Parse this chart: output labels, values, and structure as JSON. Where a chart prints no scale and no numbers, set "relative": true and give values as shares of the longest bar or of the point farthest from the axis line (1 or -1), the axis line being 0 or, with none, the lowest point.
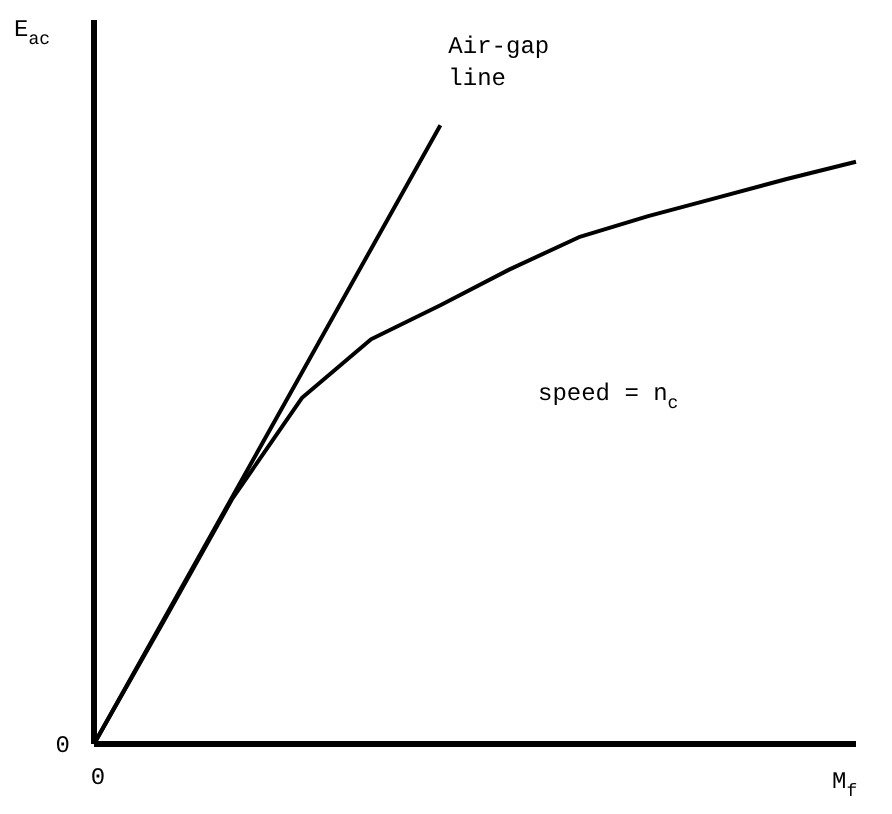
{
  "chart_data": {
    "type": "line",
    "relative": true,
    "xlabel": "M$_{f}$",
    "ylabel": "E$_{ac}$",
    "categories": [
      null,
      null,
      null,
      null,
      null,
      null,
      null,
      null,
      null,
      null,
      null,
      null
    ],
    "ylim": [
      0,
      1.17
    ],
    "marker": "none",
    "line_style": "solid",
    "series": [
      {
        "color": "#000000",
        "values": [
          0,
          0.197,
          0.397,
          0.559,
          0.654,
          0.709,
          0.767,
          0.819,
          0.853,
          0.883,
          0.913,
          0.941
        ]
      },
      {
        "name": "Air-gap line",
        "color": "#000000",
        "values": [
          0,
          0.2,
          0.4,
          0.6,
          0.8,
          1,
          null,
          null,
          null,
          null,
          null,
          null
        ]
      }
    ],
    "annotations": [
      "speed = n$_{c}$",
      "0",
      "0"
    ]
  }
}
